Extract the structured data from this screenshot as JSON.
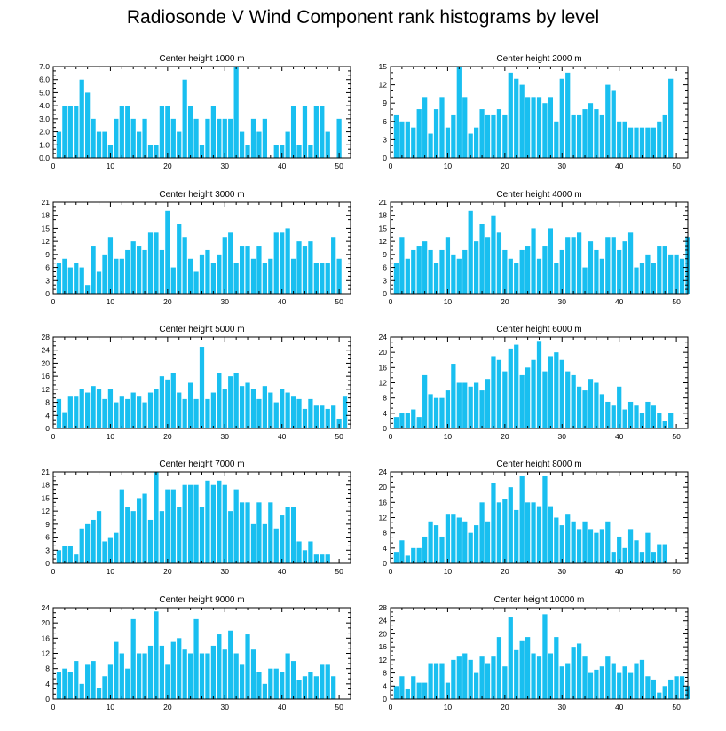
{
  "title": "Radiosonde V Wind Component rank histograms by level",
  "chart_data": [
    {
      "type": "bar",
      "title": "Center height 1000 m",
      "ylim": [
        0,
        7
      ],
      "yticks": [
        "0.0",
        "1.0",
        "2.0",
        "3.0",
        "4.0",
        "5.0",
        "6.0",
        "7.0"
      ],
      "xticks": [
        "0",
        "10",
        "20",
        "30",
        "40",
        "50"
      ],
      "values": [
        2,
        4,
        4,
        4,
        6,
        5,
        3,
        2,
        2,
        1,
        3,
        4,
        4,
        3,
        2,
        3,
        1,
        1,
        4,
        4,
        3,
        2,
        6,
        4,
        3,
        1,
        3,
        4,
        3,
        3,
        3,
        7,
        2,
        1,
        3,
        2,
        3,
        0,
        1,
        1,
        2,
        4,
        1,
        4,
        1,
        4,
        4,
        2,
        0,
        3,
        0
      ]
    },
    {
      "type": "bar",
      "title": "Center height 2000 m",
      "ylim": [
        0,
        15
      ],
      "yticks": [
        "0",
        "3",
        "6",
        "9",
        "12",
        "15"
      ],
      "xticks": [
        "0",
        "10",
        "20",
        "30",
        "40",
        "50"
      ],
      "values": [
        7,
        6,
        6,
        5,
        8,
        10,
        4,
        8,
        10,
        5,
        7,
        15,
        10,
        4,
        5,
        8,
        7,
        7,
        8,
        7,
        14,
        13,
        12,
        10,
        10,
        10,
        9,
        10,
        6,
        13,
        14,
        7,
        7,
        8,
        9,
        8,
        7,
        12,
        11,
        6,
        6,
        5,
        5,
        5,
        5,
        5,
        6,
        7,
        13,
        0,
        0
      ]
    },
    {
      "type": "bar",
      "title": "Center height 3000 m",
      "ylim": [
        0,
        21
      ],
      "yticks": [
        "0",
        "3",
        "6",
        "9",
        "12",
        "15",
        "18",
        "21"
      ],
      "xticks": [
        "0",
        "10",
        "20",
        "30",
        "40",
        "50"
      ],
      "values": [
        7,
        8,
        6,
        7,
        6,
        2,
        11,
        5,
        9,
        13,
        8,
        8,
        10,
        12,
        11,
        10,
        14,
        14,
        10,
        19,
        6,
        16,
        13,
        8,
        5,
        9,
        10,
        7,
        9,
        13,
        14,
        7,
        11,
        11,
        8,
        11,
        7,
        8,
        14,
        14,
        15,
        8,
        12,
        11,
        12,
        7,
        7,
        7,
        13,
        8,
        0
      ]
    },
    {
      "type": "bar",
      "title": "Center height 4000 m",
      "ylim": [
        0,
        21
      ],
      "yticks": [
        "0",
        "3",
        "6",
        "9",
        "12",
        "15",
        "18",
        "21"
      ],
      "xticks": [
        "0",
        "10",
        "20",
        "30",
        "40",
        "50"
      ],
      "values": [
        7,
        13,
        8,
        10,
        11,
        12,
        10,
        7,
        10,
        13,
        9,
        8,
        10,
        19,
        12,
        16,
        13,
        18,
        14,
        10,
        8,
        7,
        10,
        11,
        15,
        8,
        11,
        15,
        7,
        10,
        13,
        13,
        14,
        6,
        12,
        10,
        8,
        13,
        13,
        10,
        12,
        14,
        6,
        7,
        9,
        7,
        11,
        11,
        9,
        9,
        8,
        13
      ]
    },
    {
      "type": "bar",
      "title": "Center height 5000 m",
      "ylim": [
        0,
        28
      ],
      "yticks": [
        "0",
        "4",
        "8",
        "12",
        "16",
        "20",
        "24",
        "28"
      ],
      "xticks": [
        "0",
        "10",
        "20",
        "30",
        "40",
        "50"
      ],
      "values": [
        9,
        5,
        10,
        10,
        12,
        11,
        13,
        12,
        9,
        12,
        8,
        10,
        9,
        11,
        10,
        8,
        11,
        12,
        16,
        15,
        17,
        11,
        9,
        14,
        9,
        25,
        9,
        11,
        17,
        12,
        16,
        17,
        13,
        14,
        12,
        9,
        13,
        11,
        8,
        12,
        11,
        10,
        9,
        6,
        9,
        7,
        7,
        6,
        7,
        3,
        10
      ]
    },
    {
      "type": "bar",
      "title": "Center height 6000 m",
      "ylim": [
        0,
        24
      ],
      "yticks": [
        "0",
        "4",
        "8",
        "12",
        "16",
        "20",
        "24"
      ],
      "xticks": [
        "0",
        "10",
        "20",
        "30",
        "40",
        "50"
      ],
      "values": [
        3,
        4,
        4,
        5,
        3,
        14,
        9,
        8,
        8,
        10,
        17,
        12,
        12,
        11,
        12,
        10,
        13,
        19,
        18,
        15,
        21,
        22,
        14,
        16,
        18,
        23,
        15,
        19,
        20,
        18,
        15,
        14,
        11,
        10,
        13,
        12,
        9,
        7,
        6,
        11,
        5,
        7,
        6,
        4,
        7,
        6,
        4,
        2,
        4,
        0,
        0
      ]
    },
    {
      "type": "bar",
      "title": "Center height 7000 m",
      "ylim": [
        0,
        21
      ],
      "yticks": [
        "0",
        "3",
        "6",
        "9",
        "12",
        "15",
        "18",
        "21"
      ],
      "xticks": [
        "0",
        "10",
        "20",
        "30",
        "40",
        "50"
      ],
      "values": [
        3,
        4,
        4,
        2,
        8,
        9,
        10,
        12,
        5,
        6,
        7,
        17,
        13,
        12,
        15,
        16,
        10,
        21,
        12,
        17,
        17,
        13,
        18,
        18,
        18,
        13,
        19,
        18,
        19,
        18,
        12,
        17,
        14,
        14,
        9,
        14,
        9,
        14,
        8,
        11,
        13,
        13,
        5,
        3,
        5,
        2,
        2,
        2,
        0,
        0,
        0
      ]
    },
    {
      "type": "bar",
      "title": "Center height 8000 m",
      "ylim": [
        0,
        24
      ],
      "yticks": [
        "0",
        "4",
        "8",
        "12",
        "16",
        "20",
        "24"
      ],
      "xticks": [
        "0",
        "10",
        "20",
        "30",
        "40",
        "50"
      ],
      "values": [
        3,
        6,
        2,
        4,
        4,
        7,
        11,
        10,
        7,
        13,
        13,
        12,
        11,
        8,
        10,
        16,
        11,
        21,
        16,
        17,
        20,
        14,
        23,
        16,
        16,
        15,
        23,
        15,
        12,
        10,
        13,
        11,
        9,
        11,
        9,
        8,
        9,
        11,
        3,
        7,
        4,
        9,
        6,
        3,
        8,
        3,
        5,
        5,
        0,
        0,
        0
      ]
    },
    {
      "type": "bar",
      "title": "Center height 9000 m",
      "ylim": [
        0,
        24
      ],
      "yticks": [
        "0",
        "4",
        "8",
        "12",
        "16",
        "20",
        "24"
      ],
      "xticks": [
        "0",
        "10",
        "20",
        "30",
        "40",
        "50"
      ],
      "values": [
        7,
        8,
        7,
        10,
        4,
        9,
        10,
        3,
        6,
        9,
        15,
        12,
        8,
        21,
        12,
        12,
        14,
        23,
        14,
        9,
        15,
        16,
        13,
        12,
        21,
        12,
        12,
        14,
        17,
        13,
        18,
        12,
        9,
        17,
        13,
        7,
        4,
        8,
        8,
        7,
        12,
        10,
        5,
        6,
        7,
        6,
        9,
        9,
        6,
        0,
        0
      ]
    },
    {
      "type": "bar",
      "title": "Center height 10000 m",
      "ylim": [
        0,
        28
      ],
      "yticks": [
        "0",
        "4",
        "8",
        "12",
        "16",
        "20",
        "24",
        "28"
      ],
      "xticks": [
        "0",
        "10",
        "20",
        "30",
        "40",
        "50"
      ],
      "values": [
        4,
        7,
        3,
        7,
        5,
        5,
        11,
        11,
        11,
        5,
        12,
        13,
        14,
        12,
        8,
        13,
        11,
        13,
        19,
        10,
        25,
        15,
        18,
        19,
        14,
        13,
        26,
        14,
        19,
        10,
        11,
        16,
        17,
        13,
        8,
        9,
        10,
        13,
        11,
        8,
        10,
        8,
        11,
        12,
        7,
        6,
        2,
        4,
        6,
        7,
        7,
        4
      ]
    }
  ]
}
